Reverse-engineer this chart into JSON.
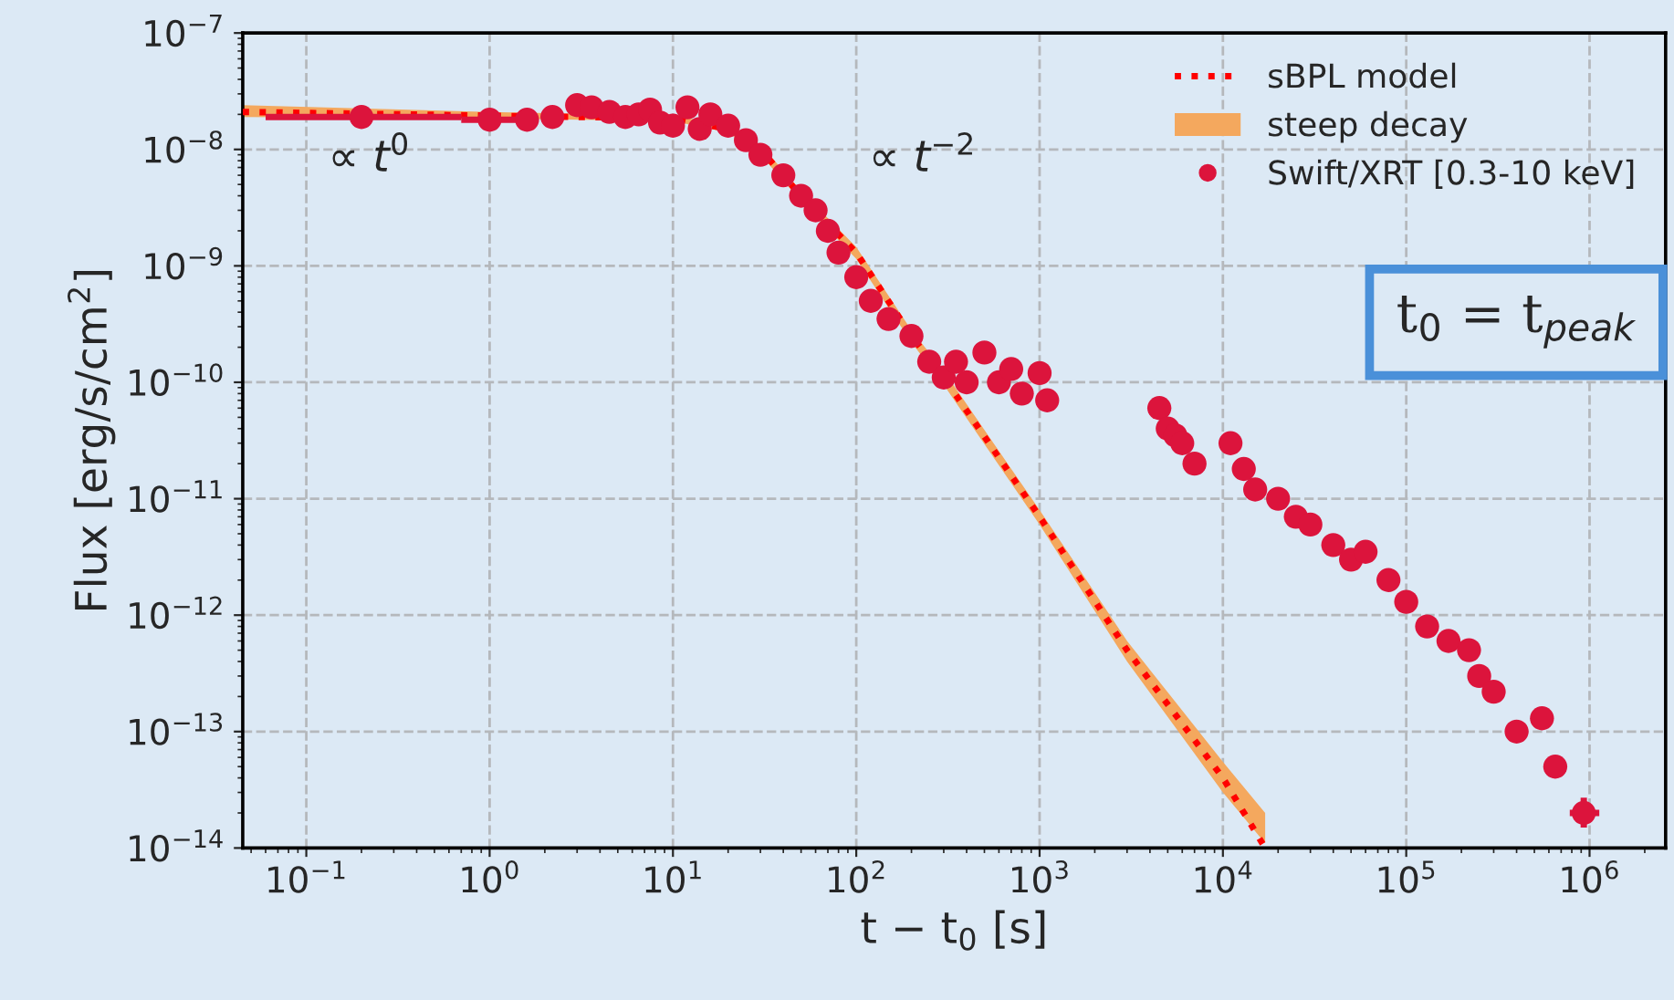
{
  "chart_data": {
    "type": "scatter",
    "xlabel": "t − t$_{0}$ [s]",
    "ylabel": "Flux [erg/s/cm$^{2}$]",
    "log": "xy",
    "xlim": [
      0.045,
      2600000
    ],
    "ylim": [
      1e-14,
      1e-07
    ],
    "xticks": [
      {
        "value": 0.1,
        "label": "10$^{−1}$"
      },
      {
        "value": 1,
        "label": "10$^{0}$"
      },
      {
        "value": 10,
        "label": "10$^{1}$"
      },
      {
        "value": 100,
        "label": "10$^{2}$"
      },
      {
        "value": 1000,
        "label": "10$^{3}$"
      },
      {
        "value": 10000,
        "label": "10$^{4}$"
      },
      {
        "value": 100000,
        "label": "10$^{5}$"
      },
      {
        "value": 1000000,
        "label": "10$^{6}$"
      }
    ],
    "yticks": [
      {
        "value": 1e-14,
        "label": "10$^{−14}$"
      },
      {
        "value": 1e-13,
        "label": "10$^{−13}$"
      },
      {
        "value": 1e-12,
        "label": "10$^{−12}$"
      },
      {
        "value": 1e-11,
        "label": "10$^{−11}$"
      },
      {
        "value": 1e-10,
        "label": "10$^{−10}$"
      },
      {
        "value": 1e-09,
        "label": "10$^{−9}$"
      },
      {
        "value": 1e-08,
        "label": "10$^{−8}$"
      },
      {
        "value": 1e-07,
        "label": "10$^{−7}$"
      }
    ],
    "grid": true,
    "legend": "top right",
    "annotations": [
      "∝ t$^{0}$",
      "∝ t$^{−2}$",
      "t$_{0}$ = t$_{peak}$",
      "steep decay"
    ],
    "series": [
      {
        "name": "sBPL model",
        "type": "line",
        "line_style": "dotted",
        "color": "#ff0000",
        "x": [
          0.045,
          1,
          10,
          20,
          30,
          50,
          100,
          200,
          300,
          1000,
          3000,
          10000,
          17000
        ],
        "values": [
          2.1e-08,
          1.95e-08,
          1.85e-08,
          1.5e-08,
          1e-08,
          4e-09,
          1.3e-09,
          2.5e-10,
          1.1e-10,
          7e-12,
          5e-13,
          4e-14,
          1e-14
        ],
        "lower": [
          1.9e-08,
          1.85e-08,
          1.75e-08,
          1.4e-08,
          9e-09,
          3.6e-09,
          1.15e-09,
          2.2e-10,
          9.5e-11,
          6e-12,
          4e-13,
          3e-14,
          1.1e-14
        ],
        "upper": [
          2.4e-08,
          2.1e-08,
          1.95e-08,
          1.6e-08,
          1.1e-08,
          4.4e-09,
          1.45e-09,
          2.8e-10,
          1.25e-10,
          8e-12,
          6e-13,
          5.5e-14,
          2e-14
        ]
      },
      {
        "name": "Swift/XRT [0.3-10 keV]",
        "type": "scatter",
        "marker": "circle",
        "color": "#dc143c",
        "x": [
          0.2,
          1.0,
          1.6,
          2.2,
          3.0,
          3.6,
          4.5,
          5.5,
          6.5,
          7.5,
          8.5,
          10,
          12,
          14,
          16,
          20,
          25,
          30,
          40,
          50,
          60,
          70,
          80,
          100,
          120,
          150,
          200,
          250,
          300,
          350,
          400,
          500,
          600,
          700,
          800,
          1000,
          1100,
          4500,
          5000,
          5500,
          6000,
          7000,
          11000,
          13000,
          15000,
          20000,
          25000,
          30000,
          40000,
          50000,
          60000,
          80000,
          100000,
          130000,
          170000,
          220000,
          250000,
          300000,
          400000,
          550000,
          650000,
          930000
        ],
        "values": [
          1.9e-08,
          1.8e-08,
          1.8e-08,
          1.9e-08,
          2.4e-08,
          2.3e-08,
          2.1e-08,
          1.9e-08,
          2e-08,
          2.2e-08,
          1.7e-08,
          1.6e-08,
          2.3e-08,
          1.5e-08,
          2e-08,
          1.6e-08,
          1.2e-08,
          9e-09,
          6e-09,
          4e-09,
          3e-09,
          2e-09,
          1.3e-09,
          8e-10,
          5e-10,
          3.5e-10,
          2.5e-10,
          1.5e-10,
          1.1e-10,
          1.5e-10,
          1e-10,
          1.8e-10,
          1e-10,
          1.3e-10,
          8e-11,
          1.2e-10,
          7e-11,
          6e-11,
          4e-11,
          3.5e-11,
          3e-11,
          2e-11,
          3e-11,
          1.8e-11,
          1.2e-11,
          1e-11,
          7e-12,
          6e-12,
          4e-12,
          3e-12,
          3.5e-12,
          2e-12,
          1.3e-12,
          8e-13,
          6e-13,
          5e-13,
          3e-13,
          2.2e-13,
          1e-13,
          1.3e-13,
          5e-14,
          2e-14
        ],
        "xerrors": [
          [
            0.06,
            0.7
          ],
          [
            0.7,
            1.5
          ],
          null,
          null,
          null,
          null,
          null,
          null,
          null,
          null,
          null,
          null,
          null,
          null,
          null,
          null,
          null,
          null,
          null,
          null,
          null,
          null,
          null,
          null,
          null,
          null,
          null,
          null,
          null,
          null,
          null,
          null,
          null,
          null,
          null,
          null,
          null,
          null,
          null,
          null,
          null,
          null,
          null,
          null,
          null,
          null,
          null,
          null,
          null,
          null,
          null,
          null,
          null,
          null,
          null,
          null,
          null,
          null,
          null,
          null,
          null,
          [
            780000,
            1130000
          ]
        ],
        "errors": [
          null,
          null,
          null,
          null,
          null,
          null,
          null,
          null,
          null,
          null,
          null,
          null,
          null,
          null,
          null,
          null,
          null,
          null,
          null,
          null,
          null,
          null,
          null,
          null,
          null,
          null,
          null,
          null,
          null,
          null,
          null,
          null,
          null,
          null,
          null,
          null,
          null,
          null,
          null,
          null,
          null,
          null,
          null,
          null,
          null,
          null,
          null,
          null,
          null,
          null,
          null,
          null,
          null,
          null,
          null,
          null,
          null,
          null,
          null,
          null,
          [
            4e-14,
            6e-14
          ],
          [
            1.5e-14,
            2.7e-14
          ]
        ]
      }
    ]
  }
}
